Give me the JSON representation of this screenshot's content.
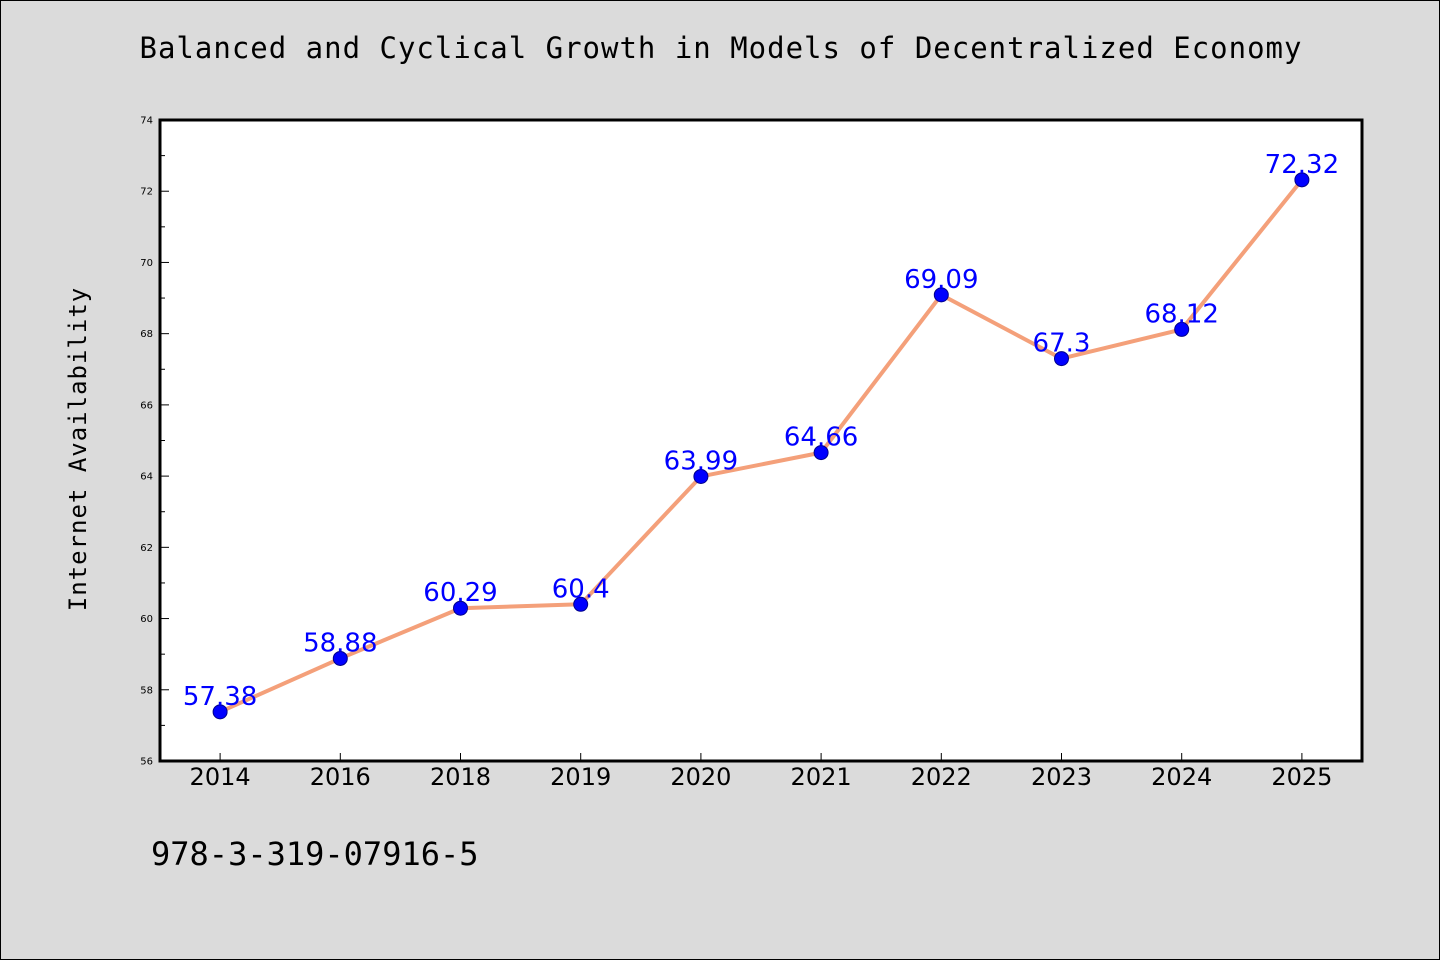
{
  "chart_data": {
    "type": "line",
    "title": "Balanced and Cyclical Growth in Models of Decentralized Economy",
    "xlabel": "",
    "ylabel": "Internet Availability",
    "categories": [
      "2014",
      "2016",
      "2018",
      "2019",
      "2020",
      "2021",
      "2022",
      "2023",
      "2024",
      "2025"
    ],
    "series": [
      {
        "values": [
          57.38,
          58.88,
          60.29,
          60.4,
          63.99,
          64.66,
          69.09,
          67.3,
          68.12,
          72.32
        ],
        "data_labels": [
          "57.38",
          "58.88",
          "60.29",
          "60.4",
          "63.99",
          "64.66",
          "69.09",
          "67.3",
          "68.12",
          "72.32"
        ]
      }
    ],
    "ylim": [
      56,
      74
    ],
    "yticks": [
      "56",
      "58",
      "60",
      "62",
      "64",
      "66",
      "68",
      "70",
      "72",
      "74"
    ],
    "grid": false,
    "legend": "none",
    "colors": {
      "line": "#f4a07a",
      "marker": "#0000ff",
      "marker_edge": "#00008b",
      "data_label": "#0000ff",
      "plot_background": "#ffffff",
      "figure_background": "#dbdbdb"
    }
  },
  "footer": {
    "isbn": "978-3-319-07916-5"
  }
}
